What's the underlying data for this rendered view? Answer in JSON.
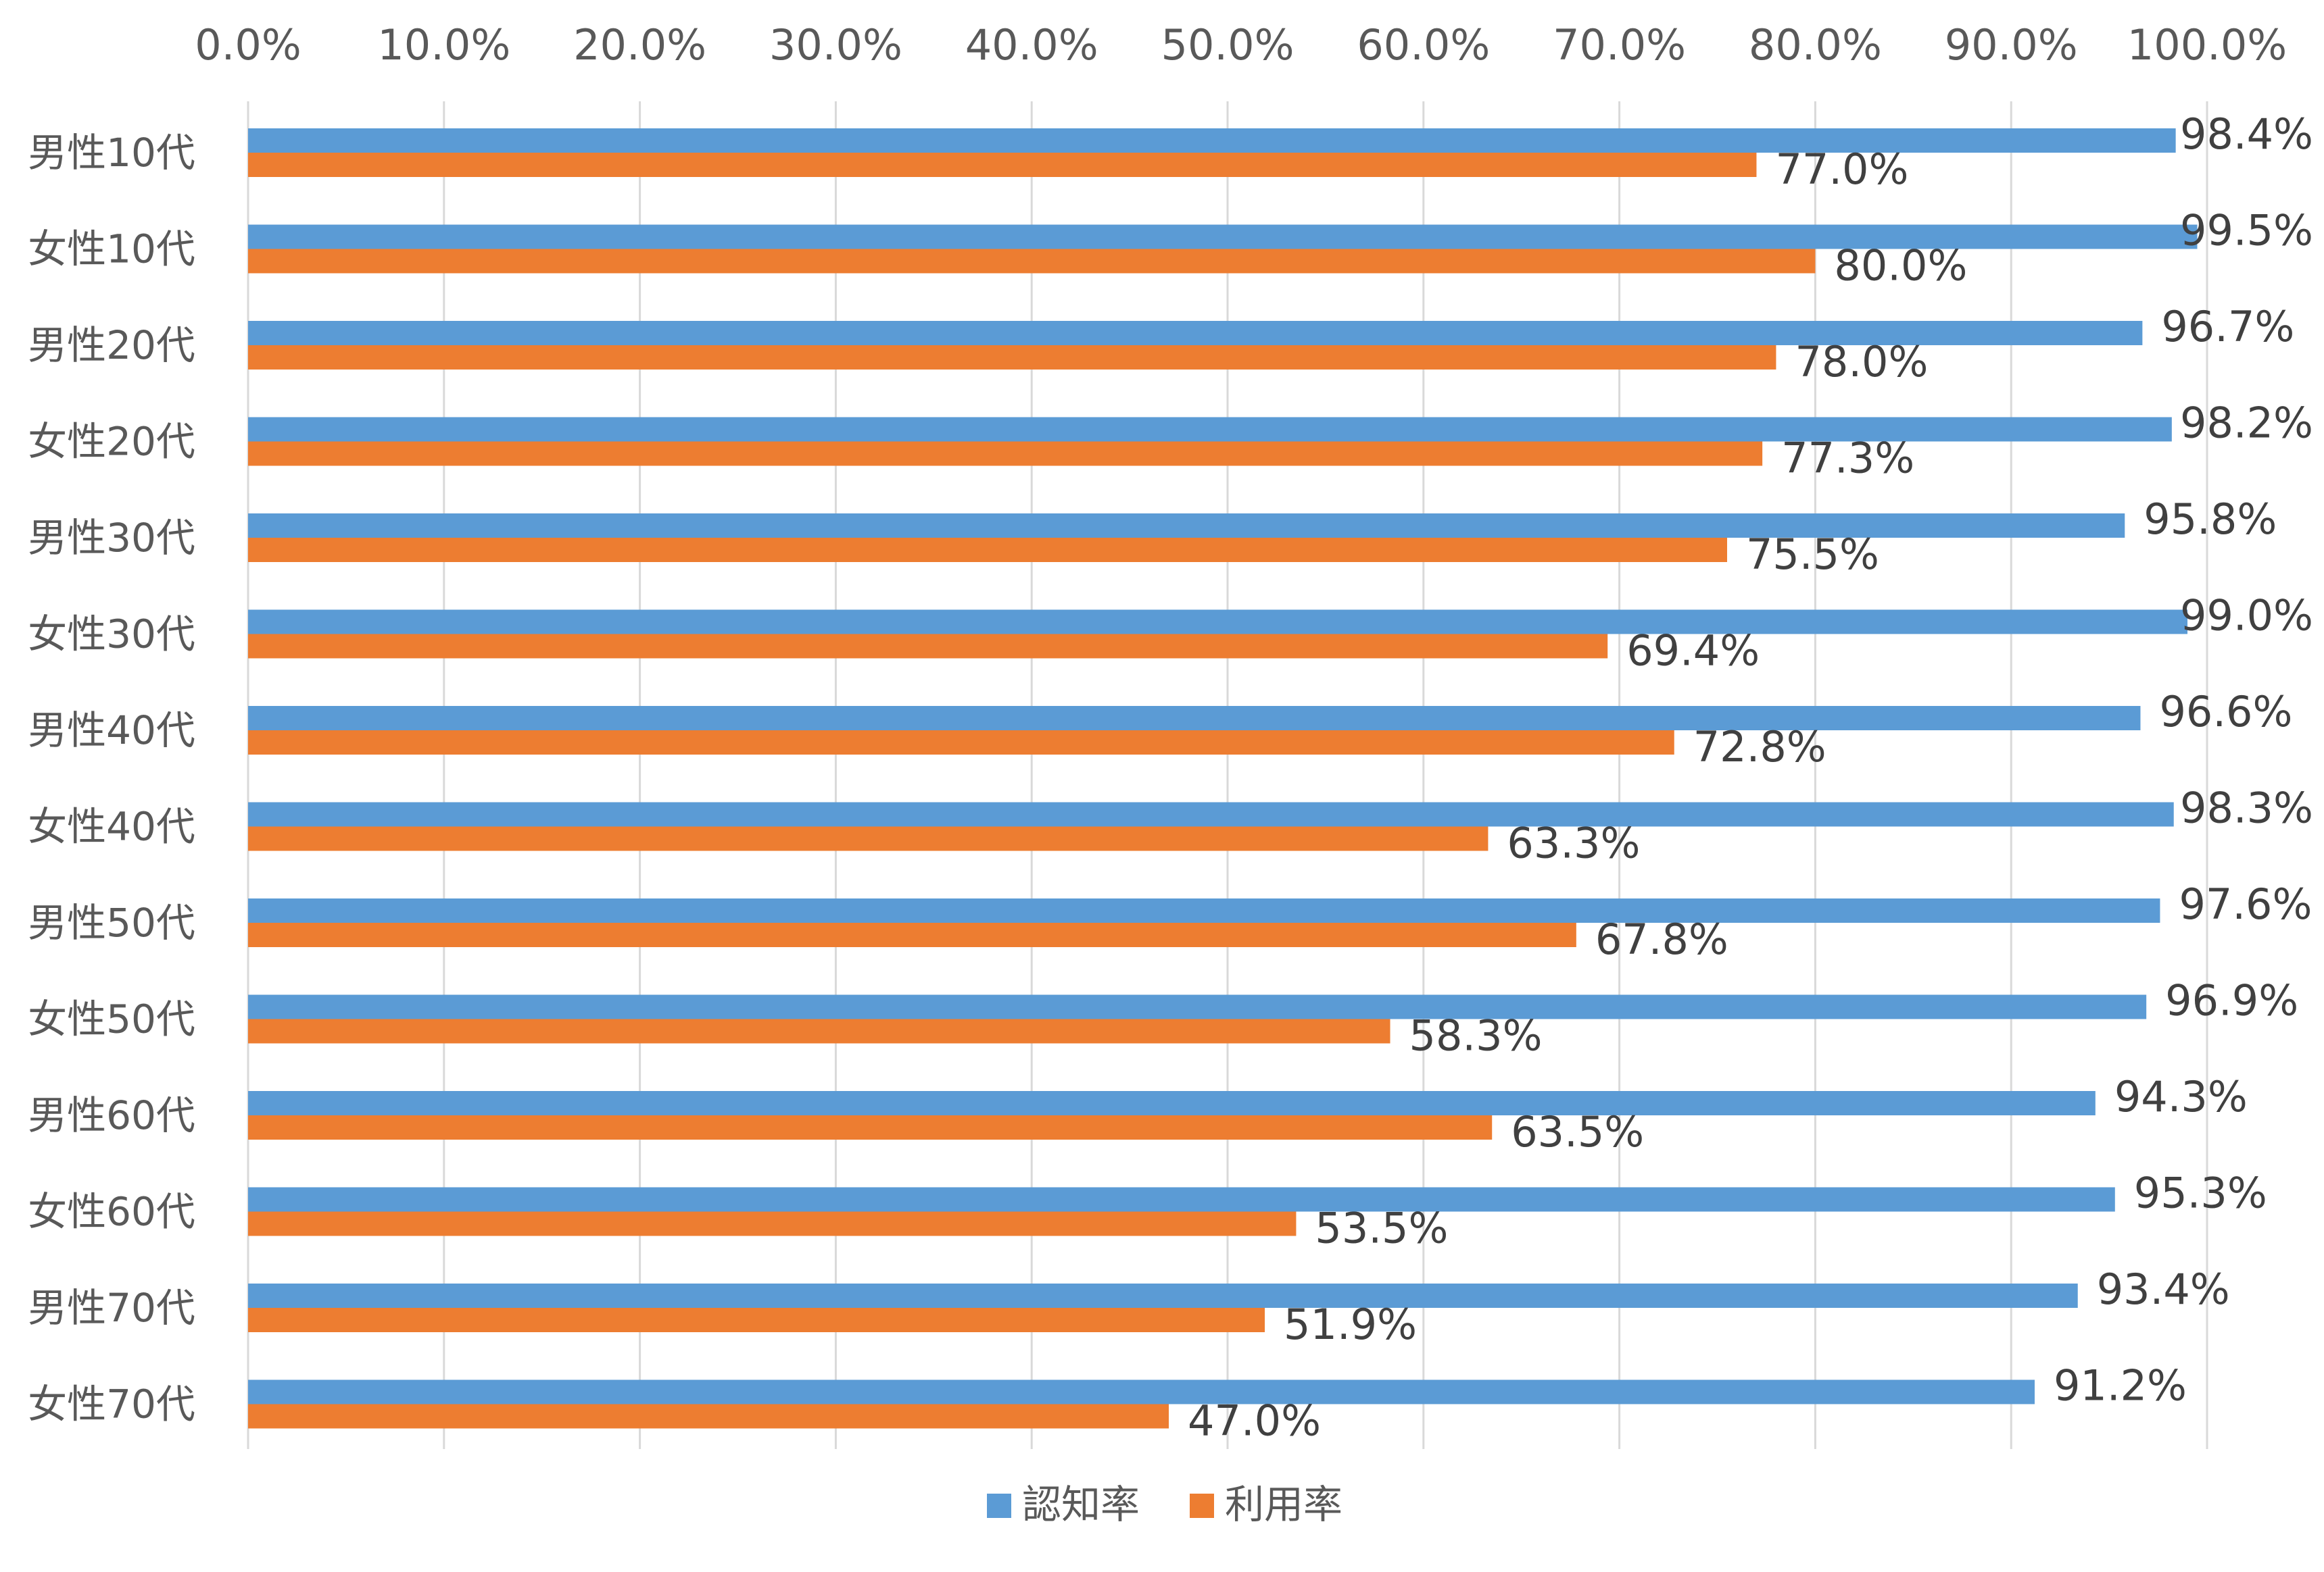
{
  "chart_data": {
    "type": "bar",
    "orientation": "horizontal",
    "categories": [
      "男性10代",
      "女性10代",
      "男性20代",
      "女性20代",
      "男性30代",
      "女性30代",
      "男性40代",
      "女性40代",
      "男性50代",
      "女性50代",
      "男性60代",
      "女性60代",
      "男性70代",
      "女性70代"
    ],
    "series": [
      {
        "name": "認知率",
        "color": "#5B9BD5",
        "values": [
          98.4,
          99.5,
          96.7,
          98.2,
          95.8,
          99.0,
          96.6,
          98.3,
          97.6,
          96.9,
          94.3,
          95.3,
          93.4,
          91.2
        ]
      },
      {
        "name": "利用率",
        "color": "#ED7D31",
        "values": [
          77.0,
          80.0,
          78.0,
          77.3,
          75.5,
          69.4,
          72.8,
          63.3,
          67.8,
          58.3,
          63.5,
          53.5,
          51.9,
          47.0
        ]
      }
    ],
    "value_labels": {
      "認知率": [
        "98.4%",
        "99.5%",
        "96.7%",
        "98.2%",
        "95.8%",
        "99.0%",
        "96.6%",
        "98.3%",
        "97.6%",
        "96.9%",
        "94.3%",
        "95.3%",
        "93.4%",
        "91.2%"
      ],
      "利用率": [
        "77.0%",
        "80.0%",
        "78.0%",
        "77.3%",
        "75.5%",
        "69.4%",
        "72.8%",
        "63.3%",
        "67.8%",
        "58.3%",
        "63.5%",
        "53.5%",
        "51.9%",
        "47.0%"
      ]
    },
    "x_ticks": [
      "0.0%",
      "10.0%",
      "20.0%",
      "30.0%",
      "40.0%",
      "50.0%",
      "60.0%",
      "70.0%",
      "80.0%",
      "90.0%",
      "100.0%"
    ],
    "xlim": [
      0,
      100
    ],
    "x_axis_position": "top",
    "grid": true,
    "legend": {
      "placement": "bottom",
      "entries": [
        "認知率",
        "利用率"
      ]
    }
  }
}
